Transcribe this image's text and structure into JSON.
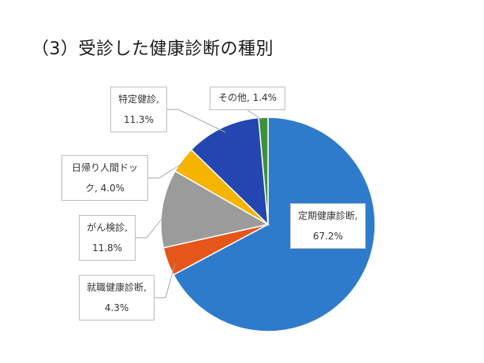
{
  "title": "（3）受診した健康診断の種別",
  "chart_data": {
    "type": "pie",
    "start_angle_deg": 0,
    "direction": "clockwise",
    "slices": [
      {
        "category": "定期健康診断",
        "value": 67.2,
        "label_line1": "定期健康診断,",
        "label_line2": "67.2%",
        "color": "#2E7BCB"
      },
      {
        "category": "就職健康診断",
        "value": 4.3,
        "label_line1": "就職健康診断,",
        "label_line2": "4.3%",
        "color": "#E5561B"
      },
      {
        "category": "がん検診",
        "value": 11.8,
        "label_line1": "がん検診,",
        "label_line2": "11.8%",
        "color": "#9B9B9B"
      },
      {
        "category": "日帰り人間ドック",
        "value": 4.0,
        "label_line1": "日帰り人間ドッ",
        "label_line2": "ク, 4.0%",
        "color": "#F5B400"
      },
      {
        "category": "特定健診",
        "value": 11.3,
        "label_line1": "特定健診,",
        "label_line2": "11.3%",
        "color": "#2346B0"
      },
      {
        "category": "その他",
        "value": 1.4,
        "label_line1": "その他, 1.4%",
        "label_line2": "",
        "color": "#3F8F3A"
      }
    ]
  }
}
